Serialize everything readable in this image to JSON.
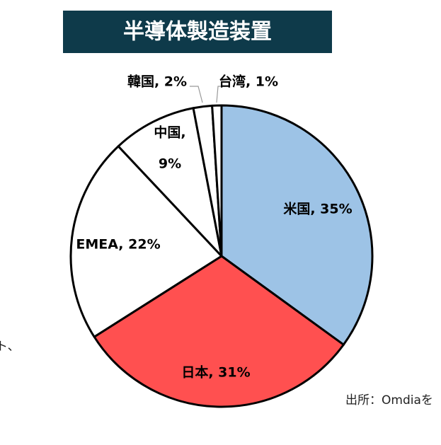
{
  "chart_data": {
    "type": "pie",
    "title": "半導体製造装置",
    "categories": [
      "米国",
      "日本",
      "EMEA",
      "中国",
      "韓国",
      "台湾"
    ],
    "values": [
      35,
      31,
      22,
      9,
      2,
      1
    ],
    "labels": [
      [
        "米国, 35%"
      ],
      [
        "日本, 31%"
      ],
      [
        "EMEA, 22%"
      ],
      [
        "中国,",
        "9%"
      ],
      [
        "韓国, 2%"
      ],
      [
        "台湾, 1%"
      ]
    ],
    "colors": [
      "#9dc3e6",
      "#ff5050",
      "#ffffff",
      "#ffffff",
      "#ffffff",
      "#ffffff"
    ],
    "source": "出所：Omdiaを",
    "fragments": [
      "ト、",
      "、"
    ]
  }
}
